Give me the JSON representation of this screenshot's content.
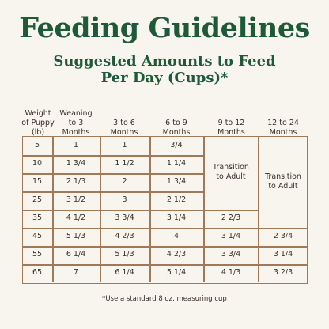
{
  "title": "Feeding Guidelines",
  "subtitle_line1": "Suggested Amounts to Feed",
  "subtitle_line2": "Per Day (Cups)*",
  "headers": [
    [
      "Weight",
      "of Puppy",
      "(lb)"
    ],
    [
      "Weaning",
      "to 3",
      "Months"
    ],
    [
      "3 to 6",
      "Months"
    ],
    [
      "6 to 9",
      "Months"
    ],
    [
      "9 to 12",
      "Months"
    ],
    [
      "12 to 24",
      "Months"
    ]
  ],
  "rows": [
    {
      "weight": "5",
      "c1": "1",
      "c2": "1",
      "c3": "3/4"
    },
    {
      "weight": "10",
      "c1": "1 3/4",
      "c2": "1 1/2",
      "c3": "1 1/4"
    },
    {
      "weight": "15",
      "c1": "2 1/3",
      "c2": "2",
      "c3": "1 3/4"
    },
    {
      "weight": "25",
      "c1": "3 1/2",
      "c2": "3",
      "c3": "2 1/2"
    },
    {
      "weight": "35",
      "c1": "4 1/2",
      "c2": "3 3/4",
      "c3": "3 1/4",
      "c4": "2 2/3"
    },
    {
      "weight": "45",
      "c1": "5 1/3",
      "c2": "4 2/3",
      "c3": "4",
      "c4": "3 1/4",
      "c5": "2 3/4"
    },
    {
      "weight": "55",
      "c1": "6 1/4",
      "c2": "5 1/3",
      "c3": "4 2/3",
      "c4": "3 3/4",
      "c5": "3 1/4"
    },
    {
      "weight": "65",
      "c1": "7",
      "c2": "6 1/4",
      "c3": "5 1/4",
      "c4": "4 1/3",
      "c5": "3 2/3"
    }
  ],
  "transition_9_12": [
    "Transition",
    "to Adult"
  ],
  "transition_12_24": [
    "Transition",
    "to Adult"
  ],
  "footnote": "*Use a standard 8 oz. measuring cup"
}
